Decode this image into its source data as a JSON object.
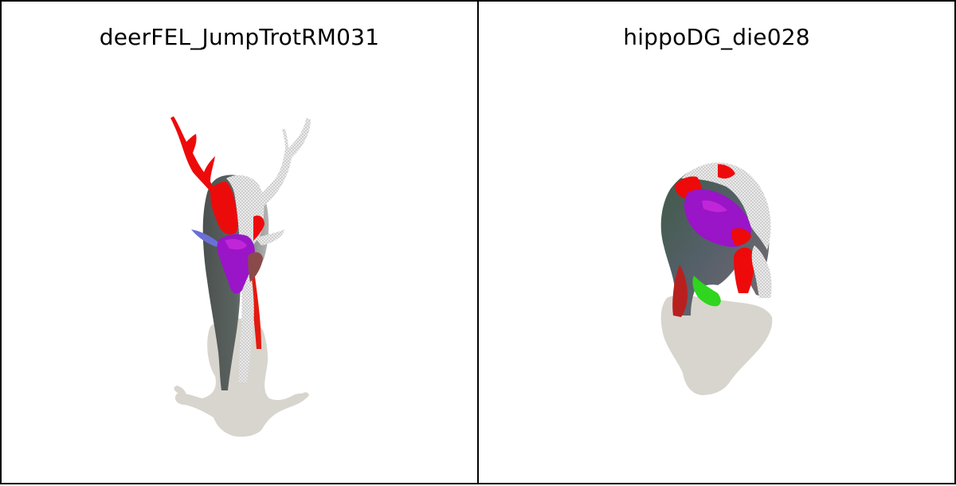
{
  "panels": [
    {
      "title": "deerFEL_JumpTrotRM031",
      "subject": "deer"
    },
    {
      "title": "hippoDG_die028",
      "subject": "hippo"
    }
  ],
  "colors": {
    "shadow": "#d8d5ce",
    "red": "#ee0a0a",
    "purple": "#9a14c8",
    "green": "#2fd51e",
    "dark": "#4a4f4e",
    "white_mesh": "#e6e6e6"
  }
}
